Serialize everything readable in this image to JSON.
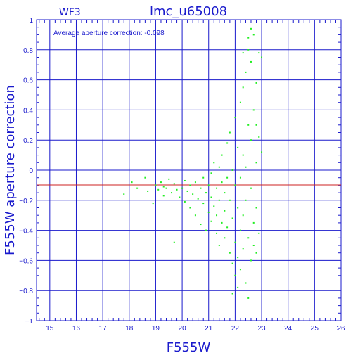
{
  "chart_data": {
    "type": "scatter",
    "title": "lmc_u65008",
    "subtitle_left": "WF3",
    "annotation": "Average aperture correction: -0.098",
    "xlabel": "F555W",
    "ylabel": "F555W aperture correction",
    "xlim": [
      14.5,
      26
    ],
    "ylim": [
      -1,
      1
    ],
    "xticks": [
      "15",
      "16",
      "17",
      "18",
      "19",
      "20",
      "21",
      "22",
      "23",
      "24",
      "25",
      "26"
    ],
    "yticks": [
      "1",
      "0.8",
      "0.6",
      "0.4",
      "0.2",
      "0",
      "−0.2",
      "−0.4",
      "−0.6",
      "−0.8",
      "−1"
    ],
    "grid": true,
    "reference_line": -0.098,
    "colors": {
      "axes": "#1a1acc",
      "grid": "#1a1acc",
      "points": "#22ee22",
      "reference_line": "#cc2222"
    },
    "series": [
      {
        "points": [
          [
            17.8,
            -0.16
          ],
          [
            18.1,
            -0.08
          ],
          [
            18.3,
            -0.12
          ],
          [
            18.6,
            -0.05
          ],
          [
            18.7,
            -0.14
          ],
          [
            18.9,
            -0.22
          ],
          [
            19.0,
            -0.1
          ],
          [
            19.1,
            -0.13
          ],
          [
            19.2,
            -0.08
          ],
          [
            19.3,
            -0.11
          ],
          [
            19.3,
            -0.17
          ],
          [
            19.4,
            -0.12
          ],
          [
            19.5,
            -0.06
          ],
          [
            19.6,
            -0.15
          ],
          [
            19.7,
            -0.09
          ],
          [
            19.7,
            -0.48
          ],
          [
            19.8,
            -0.13
          ],
          [
            19.9,
            -0.18
          ],
          [
            20.0,
            -0.12
          ],
          [
            20.1,
            -0.07
          ],
          [
            20.1,
            -0.21
          ],
          [
            20.2,
            -0.14
          ],
          [
            20.3,
            -0.1
          ],
          [
            20.3,
            -0.25
          ],
          [
            20.4,
            -0.16
          ],
          [
            20.5,
            -0.08
          ],
          [
            20.5,
            -0.3
          ],
          [
            20.6,
            -0.19
          ],
          [
            20.7,
            -0.12
          ],
          [
            20.7,
            -0.36
          ],
          [
            20.8,
            -0.22
          ],
          [
            20.8,
            -0.05
          ],
          [
            20.9,
            -0.15
          ],
          [
            20.9,
            -0.4
          ],
          [
            21.0,
            -0.1
          ],
          [
            21.0,
            -0.28
          ],
          [
            21.1,
            -0.02
          ],
          [
            21.1,
            -0.18
          ],
          [
            21.1,
            -0.34
          ],
          [
            21.2,
            -0.24
          ],
          [
            21.2,
            0.05
          ],
          [
            21.3,
            -0.12
          ],
          [
            21.3,
            -0.42
          ],
          [
            21.3,
            -0.3
          ],
          [
            21.4,
            0.02
          ],
          [
            21.4,
            -0.2
          ],
          [
            21.4,
            -0.5
          ],
          [
            21.5,
            -0.08
          ],
          [
            21.5,
            -0.35
          ],
          [
            21.5,
            0.1
          ],
          [
            21.6,
            -0.15
          ],
          [
            21.6,
            -0.45
          ],
          [
            21.6,
            -0.27
          ],
          [
            21.7,
            0.18
          ],
          [
            21.7,
            -0.05
          ],
          [
            21.7,
            -0.38
          ],
          [
            21.8,
            -0.55
          ],
          [
            21.8,
            -0.2
          ],
          [
            21.8,
            0.25
          ],
          [
            21.9,
            0.0
          ],
          [
            21.9,
            -0.62
          ],
          [
            21.9,
            -0.32
          ],
          [
            22.0,
            0.35
          ],
          [
            22.0,
            -0.1
          ],
          [
            22.0,
            -0.48
          ],
          [
            22.0,
            -0.7
          ],
          [
            22.1,
            0.15
          ],
          [
            22.1,
            -0.25
          ],
          [
            22.1,
            -0.58
          ],
          [
            22.2,
            0.45
          ],
          [
            22.2,
            -0.05
          ],
          [
            22.2,
            -0.4
          ],
          [
            22.2,
            -0.66
          ],
          [
            22.3,
            0.55
          ],
          [
            22.3,
            0.1
          ],
          [
            22.3,
            -0.3
          ],
          [
            22.3,
            -0.52
          ],
          [
            22.4,
            0.65
          ],
          [
            22.4,
            0.02
          ],
          [
            22.4,
            -0.2
          ],
          [
            22.4,
            -0.75
          ],
          [
            22.5,
            0.8
          ],
          [
            22.5,
            0.3
          ],
          [
            22.5,
            -0.45
          ],
          [
            22.5,
            -0.85
          ],
          [
            22.6,
            0.72
          ],
          [
            22.6,
            0.2
          ],
          [
            22.6,
            -0.12
          ],
          [
            22.6,
            -0.6
          ],
          [
            22.7,
            0.9
          ],
          [
            22.7,
            0.4
          ],
          [
            22.7,
            -0.35
          ],
          [
            22.7,
            -0.5
          ],
          [
            22.8,
            0.58
          ],
          [
            22.8,
            0.05
          ],
          [
            22.8,
            -0.25
          ],
          [
            22.8,
            -0.55
          ],
          [
            22.9,
            0.78
          ],
          [
            22.9,
            0.22
          ],
          [
            22.9,
            -0.42
          ],
          [
            23.0,
            0.75
          ],
          [
            23.0,
            0.12
          ],
          [
            22.3,
            0.78
          ],
          [
            22.6,
            0.94
          ],
          [
            22.5,
            0.88
          ],
          [
            22.8,
            0.3
          ],
          [
            22.1,
            -0.78
          ],
          [
            21.9,
            -0.82
          ]
        ]
      }
    ]
  }
}
